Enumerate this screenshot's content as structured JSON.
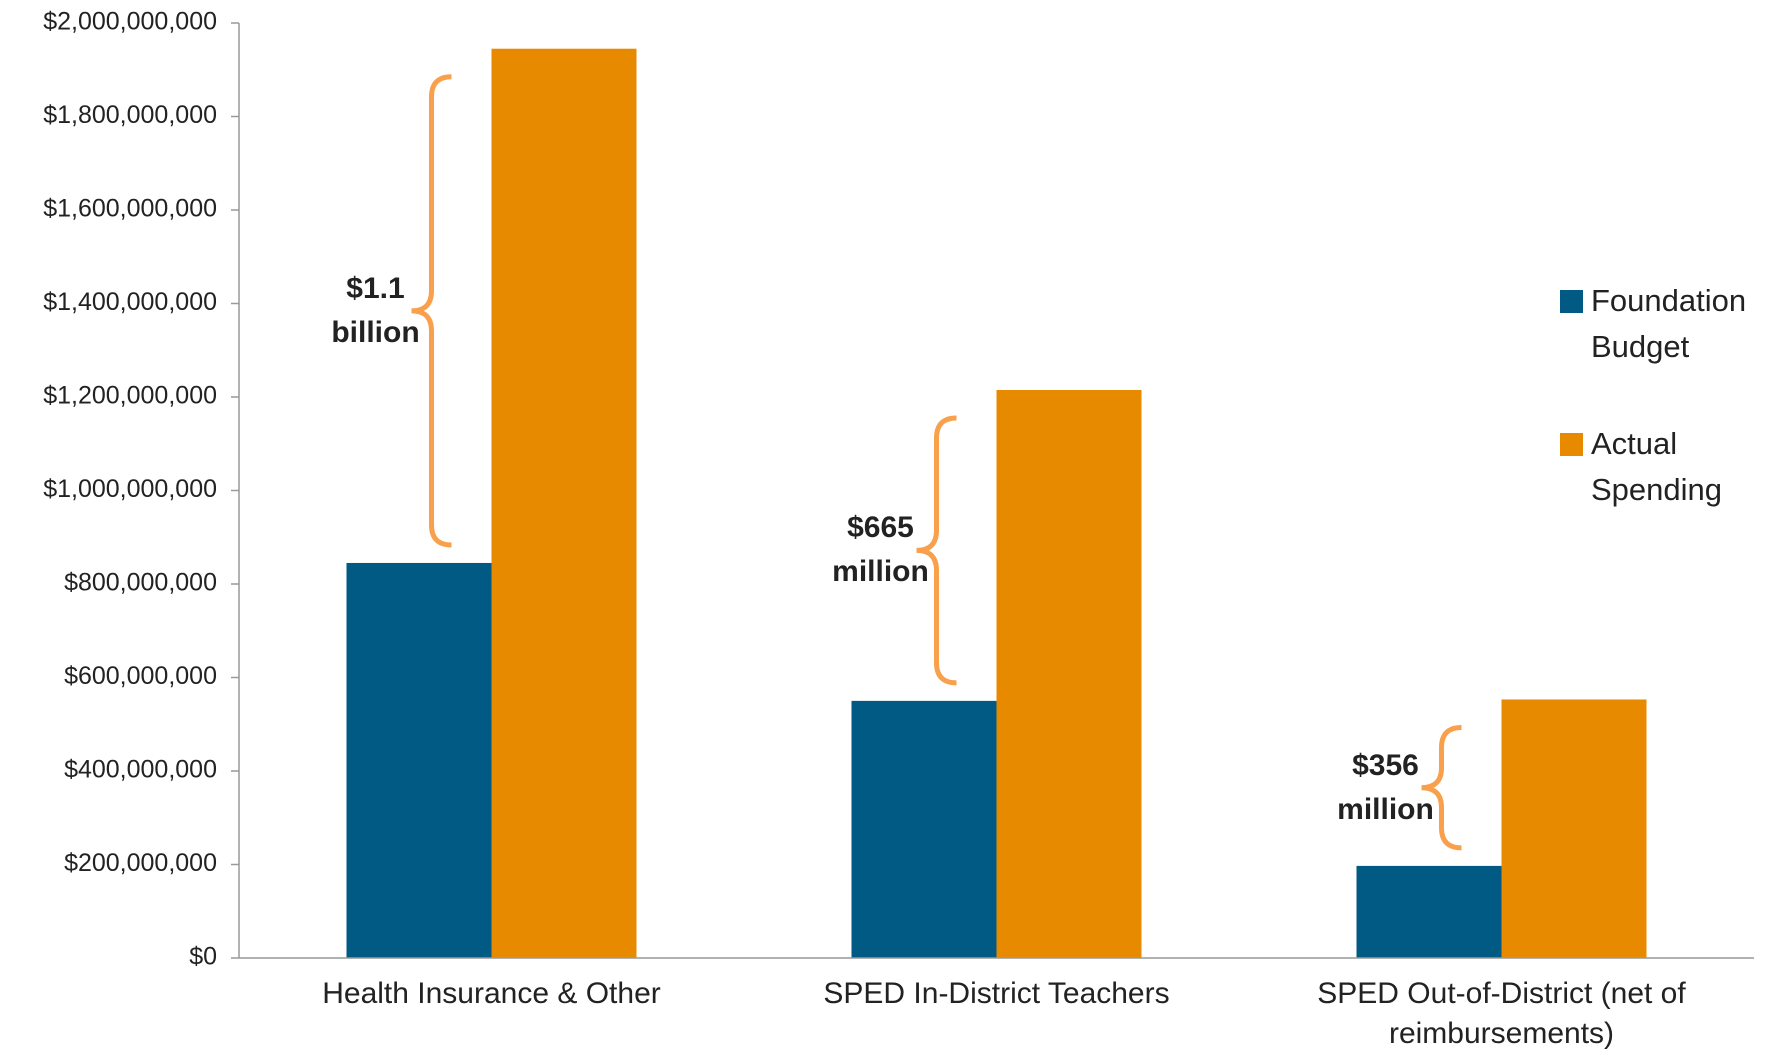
{
  "chart_data": {
    "type": "bar",
    "categories": [
      "Health Insurance & Other",
      "SPED In-District Teachers",
      "SPED Out-of-District (net of reimbursements)"
    ],
    "series": [
      {
        "name": "Foundation Budget",
        "color": "#005a84",
        "values": [
          845000000,
          550000000,
          197000000
        ]
      },
      {
        "name": "Actual Spending",
        "color": "#e88a00",
        "values": [
          1945000000,
          1215000000,
          553000000
        ]
      }
    ],
    "annotations": [
      "$1.1 billion",
      "$665 million",
      "$356 million"
    ],
    "ylim": [
      0,
      2000000000
    ],
    "yticks": [
      {
        "value": 0,
        "label": "$0"
      },
      {
        "value": 200000000,
        "label": "$200,000,000"
      },
      {
        "value": 400000000,
        "label": "$400,000,000"
      },
      {
        "value": 600000000,
        "label": "$600,000,000"
      },
      {
        "value": 800000000,
        "label": "$800,000,000"
      },
      {
        "value": 1000000000,
        "label": "$1,000,000,000"
      },
      {
        "value": 1200000000,
        "label": "$1,200,000,000"
      },
      {
        "value": 1400000000,
        "label": "$1,400,000,000"
      },
      {
        "value": 1600000000,
        "label": "$1,600,000,000"
      },
      {
        "value": 1800000000,
        "label": "$1,800,000,000"
      },
      {
        "value": 2000000000,
        "label": "$2,000,000,000"
      }
    ],
    "grid": false,
    "legend": "right",
    "annotation_color": "#f9a04c"
  }
}
